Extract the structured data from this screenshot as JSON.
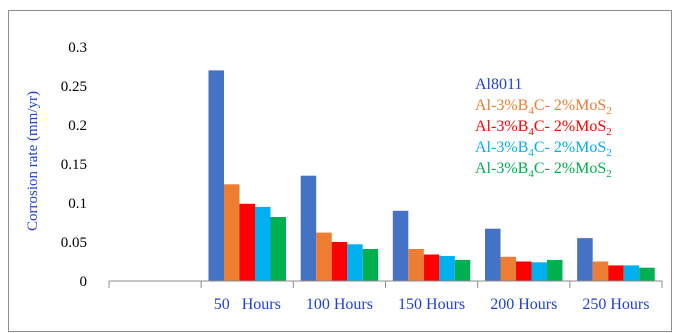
{
  "chart_data": {
    "type": "bar",
    "ylabel": "Corrosion rate (mm/yr)",
    "xlabel": "",
    "title": "",
    "ylim": [
      0,
      0.3
    ],
    "yticks": [
      "0",
      "0.05",
      "0.1",
      "0.15",
      "0.2",
      "0.25",
      "0.3"
    ],
    "categories": [
      "",
      "50   Hours",
      "100 Hours",
      "150 Hours",
      "200 Hours",
      "250 Hours"
    ],
    "series": [
      {
        "name": "Al8011",
        "color": "#4472c4",
        "values": [
          null,
          0.27,
          0.135,
          0.09,
          0.067,
          0.055
        ]
      },
      {
        "name": "Al-3%B4C- 2%MoS2",
        "color": "#ed7d31",
        "values": [
          null,
          0.124,
          0.062,
          0.041,
          0.031,
          0.025
        ]
      },
      {
        "name": "Al-3%B4C- 2%MoS2",
        "color": "#ff0000",
        "values": [
          null,
          0.099,
          0.05,
          0.034,
          0.025,
          0.02
        ]
      },
      {
        "name": "Al-3%B4C- 2%MoS2",
        "color": "#00b0f0",
        "values": [
          null,
          0.095,
          0.047,
          0.032,
          0.024,
          0.02
        ]
      },
      {
        "name": "Al-3%B4C- 2%MoS2",
        "color": "#00b050",
        "values": [
          null,
          0.082,
          0.041,
          0.027,
          0.027,
          0.017
        ]
      }
    ],
    "legend": {
      "position": "right",
      "entries": [
        {
          "base": "Al8011",
          "color": "#1f3fd6"
        },
        {
          "pre": "Al-3%B",
          "sub1": "4",
          "mid": "C- 2%MoS",
          "sub2": "2",
          "color": "#ed7d31"
        },
        {
          "pre": "Al-3%B",
          "sub1": "4",
          "mid": "C- 2%MoS",
          "sub2": "2",
          "color": "#ff0000"
        },
        {
          "pre": "Al-3%B",
          "sub1": "4",
          "mid": "C- 2%MoS",
          "sub2": "2",
          "color": "#00b0f0"
        },
        {
          "pre": "Al-3%B",
          "sub1": "4",
          "mid": "C- 2%MoS",
          "sub2": "2",
          "color": "#00b050"
        }
      ]
    },
    "grid": false
  }
}
